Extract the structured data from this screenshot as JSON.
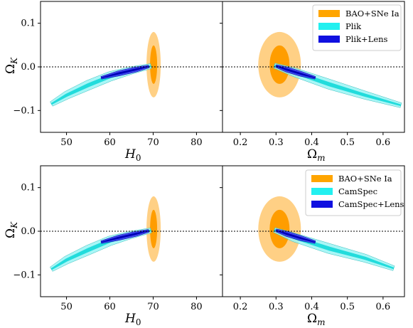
{
  "chart_data": [
    {
      "type": "contour",
      "panel": "top-left",
      "xlabel": "H_0",
      "ylabel": "Ω_K",
      "xlim": [
        44,
        86
      ],
      "ylim": [
        -0.15,
        0.15
      ],
      "xticks": [
        50,
        60,
        70,
        80
      ],
      "yticks": [
        0.1,
        0.0,
        -0.1
      ],
      "xtick_labels": [
        "50",
        "60",
        "70",
        "80"
      ],
      "ytick_labels": [
        "0.1",
        "0.0",
        "−0.1"
      ],
      "reference_line_y": 0.0,
      "series": [
        {
          "name": "BAO+SNe Ia",
          "color_outer": "#ffc870",
          "color_inner": "#ff9d00",
          "center": [
            70.1,
            0.005
          ],
          "ellipses": [
            {
              "a": 0.012,
              "b": 1.4,
              "angle": 0
            },
            {
              "a": 0.007,
              "b": 0.7,
              "angle": 0
            }
          ]
        },
        {
          "name": "Plik",
          "color_outer": "#82f0f0",
          "color_inner": "#22dcdc",
          "curve": [
            [
              46.5,
              -0.085
            ],
            [
              50,
              -0.065
            ],
            [
              55,
              -0.042
            ],
            [
              60,
              -0.022
            ],
            [
              65,
              -0.008
            ],
            [
              69.5,
              0.002
            ]
          ]
        },
        {
          "name": "Plik+Lens",
          "color_outer": "#1a1ae6",
          "color_inner": "#0000cc",
          "curve": [
            [
              58,
              -0.025
            ],
            [
              62,
              -0.015
            ],
            [
              66,
              -0.006
            ],
            [
              69,
              0.001
            ]
          ]
        }
      ]
    },
    {
      "type": "contour",
      "panel": "top-right",
      "xlabel": "Ω_m",
      "ylabel": "",
      "xlim": [
        0.15,
        0.66
      ],
      "ylim": [
        -0.15,
        0.15
      ],
      "xticks": [
        0.2,
        0.3,
        0.4,
        0.5,
        0.6
      ],
      "xtick_labels": [
        "0.2",
        "0.3",
        "0.4",
        "0.5",
        "0.6"
      ],
      "reference_line_y": 0.0,
      "legend_position": "top-right",
      "series": [
        {
          "name": "BAO+SNe Ia",
          "center": [
            0.31,
            0.005
          ]
        },
        {
          "name": "Plik",
          "curve": [
            [
              0.295,
              0.003
            ],
            [
              0.35,
              -0.012
            ],
            [
              0.45,
              -0.04
            ],
            [
              0.55,
              -0.065
            ],
            [
              0.65,
              -0.088
            ]
          ]
        },
        {
          "name": "Plik+Lens",
          "curve": [
            [
              0.3,
              0.002
            ],
            [
              0.33,
              -0.006
            ],
            [
              0.37,
              -0.016
            ],
            [
              0.41,
              -0.025
            ]
          ]
        }
      ]
    },
    {
      "type": "contour",
      "panel": "bottom-left",
      "xlabel": "H_0",
      "ylabel": "Ω_K",
      "xlim": [
        44,
        86
      ],
      "ylim": [
        -0.15,
        0.15
      ],
      "xticks": [
        50,
        60,
        70,
        80
      ],
      "yticks": [
        0.1,
        0.0,
        -0.1
      ],
      "xtick_labels": [
        "50",
        "60",
        "70",
        "80"
      ],
      "ytick_labels": [
        "0.1",
        "0.0",
        "−0.1"
      ],
      "reference_line_y": 0.0,
      "series": [
        {
          "name": "BAO+SNe Ia",
          "center": [
            70.1,
            0.005
          ]
        },
        {
          "name": "CamSpec",
          "curve": [
            [
              46.5,
              -0.087
            ],
            [
              50,
              -0.066
            ],
            [
              55,
              -0.043
            ],
            [
              60,
              -0.022
            ],
            [
              65,
              -0.008
            ],
            [
              69.5,
              0.002
            ]
          ]
        },
        {
          "name": "CamSpec+Lens",
          "curve": [
            [
              58,
              -0.025
            ],
            [
              62,
              -0.015
            ],
            [
              66,
              -0.006
            ],
            [
              69,
              0.001
            ]
          ]
        }
      ]
    },
    {
      "type": "contour",
      "panel": "bottom-right",
      "xlabel": "Ω_m",
      "ylabel": "",
      "xlim": [
        0.15,
        0.66
      ],
      "ylim": [
        -0.15,
        0.15
      ],
      "xticks": [
        0.2,
        0.3,
        0.4,
        0.5,
        0.6
      ],
      "xtick_labels": [
        "0.2",
        "0.3",
        "0.4",
        "0.5",
        "0.6"
      ],
      "reference_line_y": 0.0,
      "legend_position": "top-right",
      "series": [
        {
          "name": "BAO+SNe Ia",
          "center": [
            0.31,
            0.005
          ]
        },
        {
          "name": "CamSpec",
          "curve": [
            [
              0.295,
              0.003
            ],
            [
              0.35,
              -0.014
            ],
            [
              0.45,
              -0.04
            ],
            [
              0.55,
              -0.062
            ],
            [
              0.63,
              -0.085
            ]
          ]
        },
        {
          "name": "CamSpec+Lens",
          "curve": [
            [
              0.3,
              0.002
            ],
            [
              0.33,
              -0.006
            ],
            [
              0.37,
              -0.016
            ],
            [
              0.41,
              -0.025
            ]
          ]
        }
      ]
    }
  ],
  "legend_top": [
    "BAO+SNe Ia",
    "Plik",
    "Plik+Lens"
  ],
  "legend_bottom": [
    "BAO+SNe Ia",
    "CamSpec",
    "CamSpec+Lens"
  ],
  "legend_colors": [
    "#ffa500",
    "#22f0f0",
    "#1010e0"
  ],
  "labels": {
    "h0_main": "H",
    "h0_sub": "0",
    "om_main": "Ω",
    "om_sub": "m",
    "ok_main": "Ω",
    "ok_sub": "K"
  }
}
